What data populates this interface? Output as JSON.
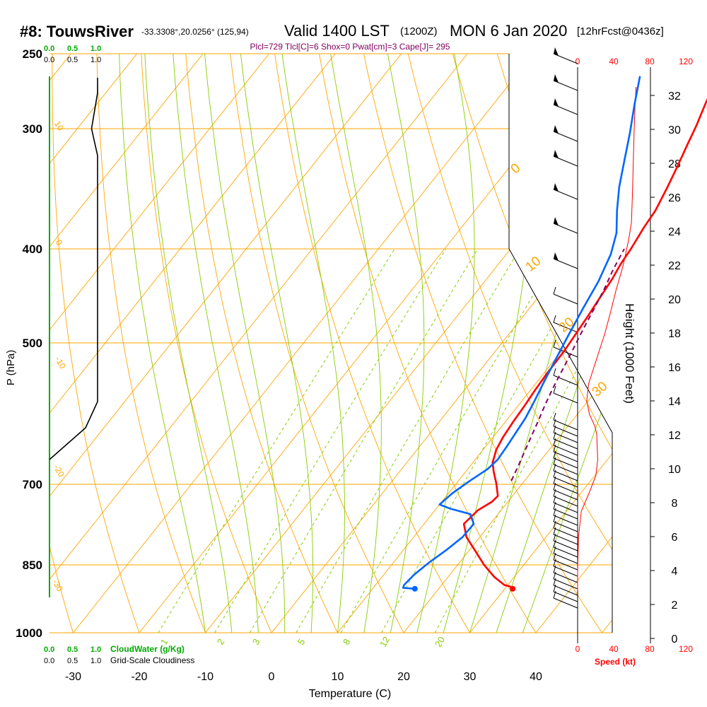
{
  "header": {
    "station": "#8: TouwsRiver",
    "coords": "-33.3308°,20.0256° (125,94)",
    "valid": "Valid 1400 LST",
    "zulu": "(1200Z)",
    "date": "MON 6 Jan 2020",
    "forecast": "[12hrFcst@0436z]",
    "indices": "Plcl=729 Tlcl[C]=6 Shox=0 Pwat[cm]=3 Cape[J]= 295"
  },
  "colors": {
    "temperature": "#ff0000",
    "dewpoint": "#0066ff",
    "parcel": "#800060",
    "isobar": "#ffa500",
    "mixing_ratio": "#88cc00",
    "cloud": "#00aa00",
    "text_red": "#ff0000"
  },
  "chart_data": [
    {
      "type": "line",
      "chart": "skew-t",
      "xlabel": "Temperature (C)",
      "ylabel": "P (hPa)",
      "x_ticks": [
        "-30",
        "-20",
        "-10",
        "0",
        "10",
        "20",
        "30",
        "40"
      ],
      "y_ticks": [
        "250",
        "300",
        "400",
        "500",
        "700",
        "850",
        "1000"
      ],
      "isotherm_labels": [
        "-10",
        "0",
        "10",
        "20",
        "30"
      ],
      "theta_labels": [
        "10",
        "0",
        "-10",
        "-20",
        "-30"
      ],
      "mixing_ratio_labels": [
        "1",
        "2",
        "3",
        "5",
        "8",
        "12",
        "20"
      ],
      "series": [
        {
          "points": [
            [
              31.2,
              900
            ],
            [
              30.5,
              895
            ],
            [
              29.5,
              892
            ],
            [
              27,
              875
            ],
            [
              24,
              850
            ],
            [
              21,
              822
            ],
            [
              18,
              795
            ],
            [
              16,
              770
            ],
            [
              16.5,
              745
            ],
            [
              17.6,
              730
            ],
            [
              17.8,
              720
            ],
            [
              16,
              698
            ],
            [
              14.3,
              680
            ],
            [
              13,
              665
            ],
            [
              12,
              645
            ],
            [
              11.5,
              626
            ],
            [
              11.2,
              604
            ],
            [
              11,
              582
            ],
            [
              10.7,
              560
            ],
            [
              10.5,
              540
            ],
            [
              10.4,
              510
            ],
            [
              10.1,
              490
            ],
            [
              9.8,
              470
            ],
            [
              9.4,
              450
            ],
            [
              9,
              430
            ],
            [
              8.5,
              415
            ],
            [
              8.2,
              400
            ],
            [
              7.6,
              380
            ],
            [
              7.3,
              365
            ],
            [
              6.3,
              345
            ],
            [
              5.3,
              328
            ],
            [
              4.3,
              313
            ],
            [
              3.3,
              298
            ],
            [
              2,
              282
            ],
            [
              0.5,
              262
            ]
          ]
        },
        {
          "points": [
            [
              16.4,
              900
            ],
            [
              14.5,
              898
            ],
            [
              14.3,
              892
            ],
            [
              14.6,
              870
            ],
            [
              15.4,
              845
            ],
            [
              16.5,
              820
            ],
            [
              17.4,
              795
            ],
            [
              17.5,
              770
            ],
            [
              15.8,
              752
            ],
            [
              12,
              742
            ],
            [
              10,
              735
            ],
            [
              10.6,
              715
            ],
            [
              11.7,
              695
            ],
            [
              13,
              675
            ],
            [
              13.4,
              660
            ],
            [
              13.2,
              640
            ],
            [
              12.9,
              618
            ],
            [
              12.6,
              598
            ],
            [
              12,
              577
            ],
            [
              11.1,
              550
            ],
            [
              10.1,
              520
            ],
            [
              9.1,
              490
            ],
            [
              8.1,
              460
            ],
            [
              7.2,
              432
            ],
            [
              5.8,
              405
            ],
            [
              4.1,
              385
            ],
            [
              1.5,
              365
            ],
            [
              -1,
              345
            ],
            [
              -3.5,
              323
            ],
            [
              -5.9,
              303
            ],
            [
              -8.6,
              283
            ],
            [
              -11.2,
              264
            ]
          ]
        },
        {
          "points": [
            [
              18,
              694
            ],
            [
              17.2,
              668
            ],
            [
              16.4,
              645
            ],
            [
              15.6,
              622
            ],
            [
              14.8,
              600
            ],
            [
              14,
              580
            ],
            [
              13.1,
              555
            ],
            [
              12.3,
              530
            ],
            [
              11.5,
              507
            ],
            [
              10.6,
              483
            ],
            [
              9.8,
              460
            ],
            [
              9,
              440
            ],
            [
              8,
              420
            ],
            [
              7.2,
              400
            ]
          ]
        }
      ]
    },
    {
      "type": "line",
      "chart": "height-speed",
      "xlabel": "Speed (kt)",
      "ylabel": "Height (1000 Feet)",
      "x_ticks": [
        "0",
        "40",
        "80",
        "120"
      ],
      "y_ticks": [
        "0",
        "2",
        "4",
        "6",
        "8",
        "10",
        "12",
        "14",
        "16",
        "18",
        "20",
        "22",
        "24",
        "26",
        "28",
        "30",
        "32"
      ],
      "series": [
        {
          "points": [
            [
              0,
              2.8
            ],
            [
              0,
              4
            ],
            [
              1,
              6
            ],
            [
              4,
              7.5
            ],
            [
              12,
              8.5
            ],
            [
              20,
              9.6
            ],
            [
              22,
              10.5
            ],
            [
              21,
              12
            ],
            [
              19,
              12.5
            ],
            [
              13,
              13.2
            ],
            [
              10,
              14
            ],
            [
              12,
              15
            ],
            [
              18,
              16
            ],
            [
              24,
              17
            ],
            [
              30,
              18
            ],
            [
              36,
              19.2
            ],
            [
              42,
              20.5
            ],
            [
              50,
              22
            ],
            [
              56,
              23.5
            ],
            [
              59,
              24.5
            ],
            [
              60,
              26
            ],
            [
              61,
              28
            ],
            [
              62,
              30
            ],
            [
              63,
              31.5
            ],
            [
              64,
              32.5
            ]
          ]
        }
      ]
    }
  ],
  "cloud_panel": {
    "scale_top": [
      "0.0",
      "0.5",
      "1.0"
    ],
    "scale_top2": [
      "0.0",
      "0.5",
      "1.0"
    ],
    "scale_bottom": [
      "0.0",
      "0.5",
      "1.0"
    ],
    "scale_bottom2": [
      "0.0",
      "0.5",
      "1.0"
    ],
    "cloudwater_label": "CloudWater (g/Kg)",
    "cloudiness_label": "Grid-Scale Cloudiness",
    "cloudiness": [
      [
        0,
        265
      ],
      [
        0,
        275
      ],
      [
        -1,
        300
      ],
      [
        0,
        320
      ],
      [
        0,
        575
      ],
      [
        -2,
        612
      ],
      [
        -8,
        660
      ]
    ]
  },
  "surface_points": {
    "temperature": 31.2,
    "dewpoint": 16.4,
    "pressure": 900
  }
}
